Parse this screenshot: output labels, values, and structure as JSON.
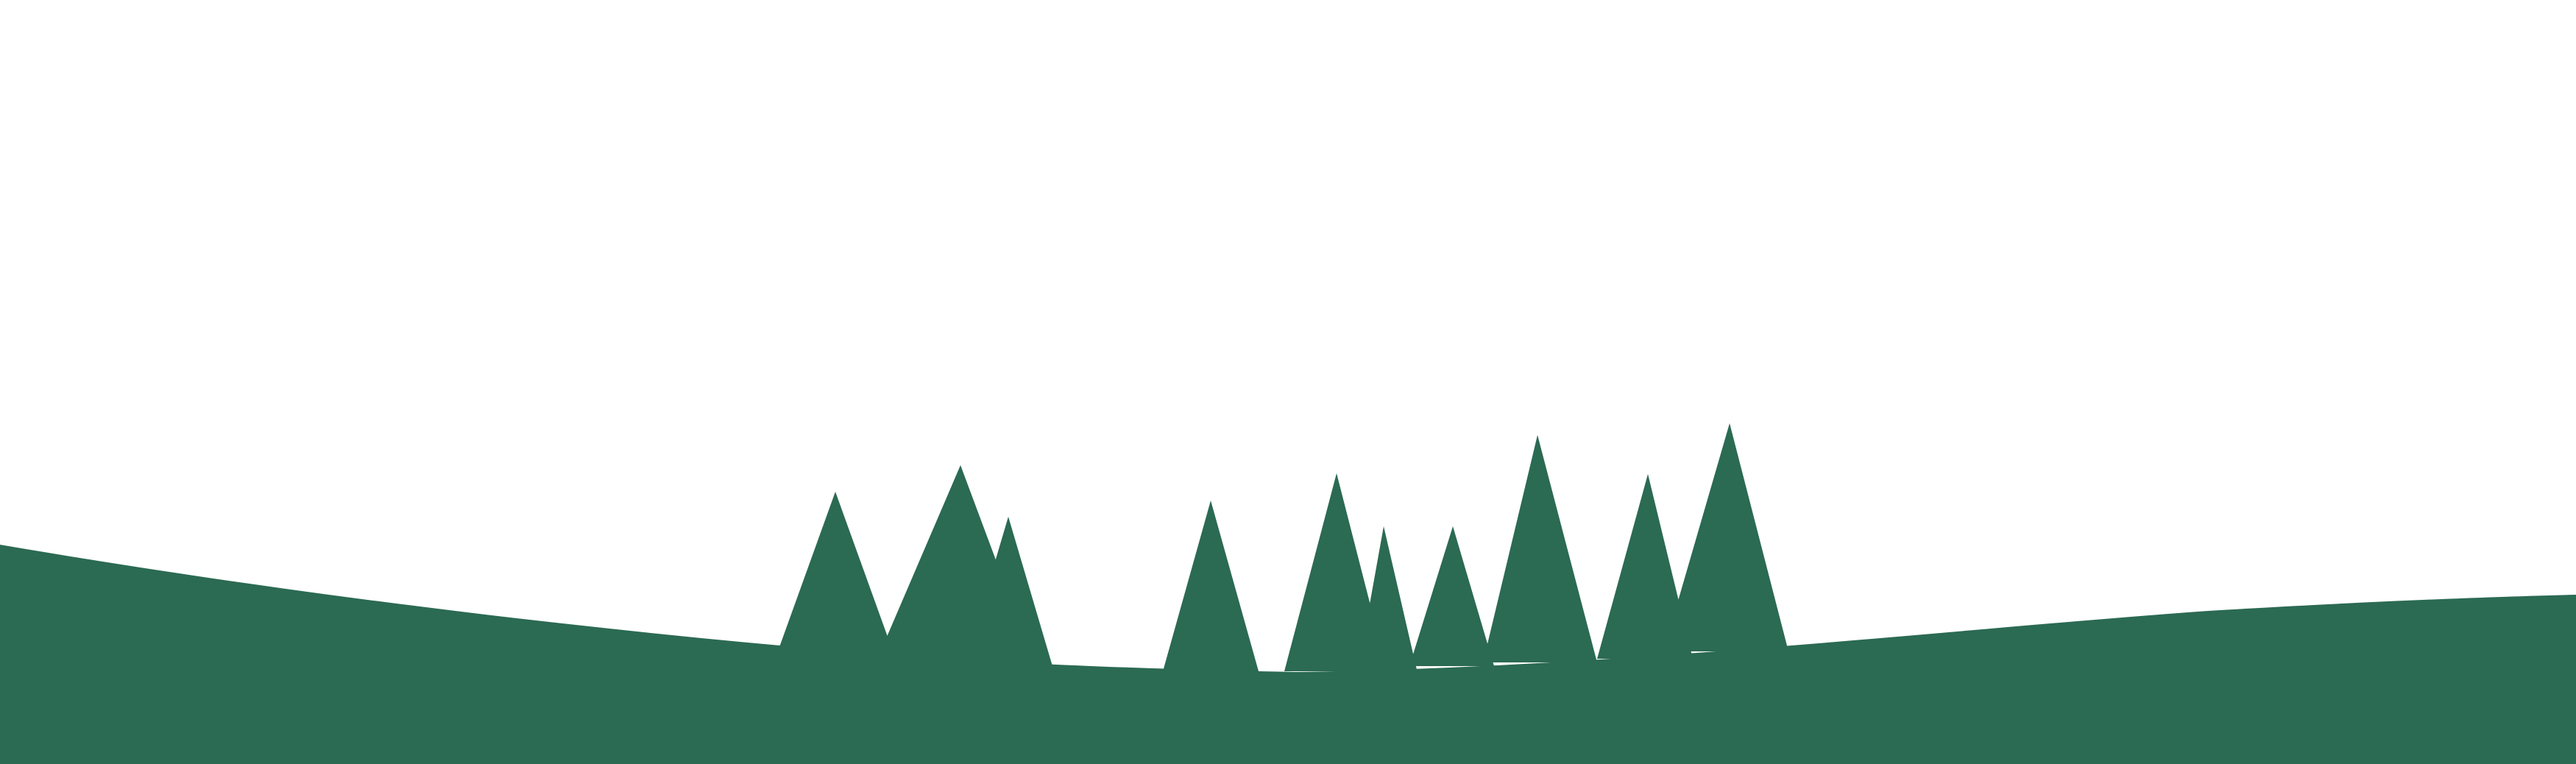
{
  "scene": {
    "background_color": "#ffffff",
    "ground_color": "#2b6a53",
    "description_icon": "forest-silhouette-icon",
    "elements": {
      "ground": "rolling-hill",
      "trees": "pine-tree-silhouettes"
    }
  }
}
